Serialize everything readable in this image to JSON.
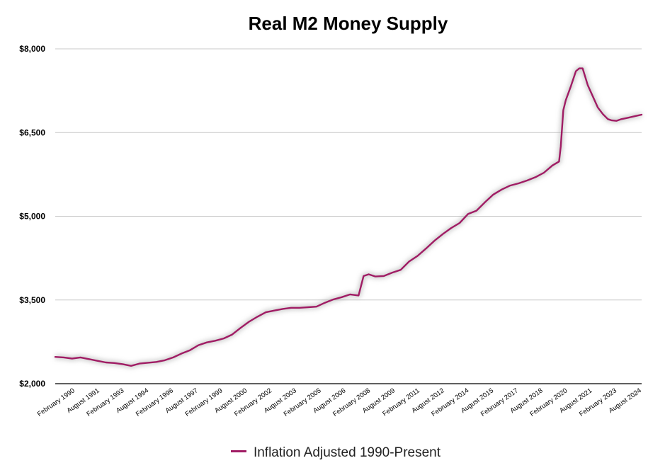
{
  "chart_data": {
    "type": "line",
    "title": "Real M2 Money Supply",
    "xlabel": "",
    "ylabel": "",
    "ylim": [
      2000,
      8000
    ],
    "yticks": [
      "$2,000",
      "$3,500",
      "$5,000",
      "$6,500",
      "$8,000"
    ],
    "ytick_values": [
      2000,
      3500,
      5000,
      6500,
      8000
    ],
    "xticks": [
      "February 1990",
      "August 1991",
      "February 1993",
      "August 1994",
      "February 1996",
      "August 1997",
      "February 1999",
      "August 2000",
      "February 2002",
      "August 2003",
      "February 2005",
      "August 2006",
      "February 2008",
      "August 2009",
      "February 2011",
      "August 2012",
      "February 2014",
      "August 2015",
      "February 2017",
      "August 2018",
      "February 2020",
      "August 2021",
      "February 2023",
      "August 2024"
    ],
    "grid": true,
    "legend_position": "bottom",
    "series": [
      {
        "name": "Inflation Adjusted 1990-Present",
        "color": "#a01c64",
        "x": [
          1990.0,
          1990.5,
          1991.0,
          1991.5,
          1992.0,
          1992.5,
          1993.0,
          1993.5,
          1994.0,
          1994.5,
          1995.0,
          1995.5,
          1996.0,
          1996.5,
          1997.0,
          1997.5,
          1998.0,
          1998.5,
          1999.0,
          1999.5,
          2000.0,
          2000.5,
          2001.0,
          2001.5,
          2002.0,
          2002.5,
          2003.0,
          2003.5,
          2004.0,
          2004.5,
          2005.0,
          2005.5,
          2006.0,
          2006.5,
          2007.0,
          2007.5,
          2008.0,
          2008.3,
          2008.6,
          2009.0,
          2009.5,
          2010.0,
          2010.5,
          2011.0,
          2011.5,
          2012.0,
          2012.5,
          2013.0,
          2013.5,
          2014.0,
          2014.5,
          2015.0,
          2015.5,
          2016.0,
          2016.5,
          2017.0,
          2017.5,
          2018.0,
          2018.5,
          2019.0,
          2019.5,
          2019.9,
          2020.0,
          2020.15,
          2020.3,
          2020.6,
          2020.9,
          2021.1,
          2021.3,
          2021.6,
          2021.9,
          2022.2,
          2022.5,
          2022.8,
          2023.0,
          2023.3,
          2023.6,
          2023.9,
          2024.2,
          2024.5,
          2024.8
        ],
        "values": [
          2480,
          2470,
          2450,
          2470,
          2440,
          2410,
          2380,
          2370,
          2350,
          2320,
          2360,
          2375,
          2390,
          2420,
          2470,
          2540,
          2600,
          2690,
          2740,
          2770,
          2810,
          2880,
          3000,
          3110,
          3200,
          3280,
          3310,
          3340,
          3360,
          3360,
          3370,
          3380,
          3450,
          3510,
          3550,
          3600,
          3580,
          3930,
          3960,
          3920,
          3930,
          3990,
          4040,
          4190,
          4290,
          4420,
          4560,
          4680,
          4790,
          4880,
          5040,
          5100,
          5250,
          5390,
          5480,
          5550,
          5590,
          5640,
          5700,
          5780,
          5910,
          5980,
          6250,
          6900,
          7080,
          7330,
          7600,
          7650,
          7650,
          7350,
          7150,
          6950,
          6830,
          6740,
          6720,
          6710,
          6740,
          6760,
          6780,
          6800,
          6820
        ]
      }
    ]
  }
}
